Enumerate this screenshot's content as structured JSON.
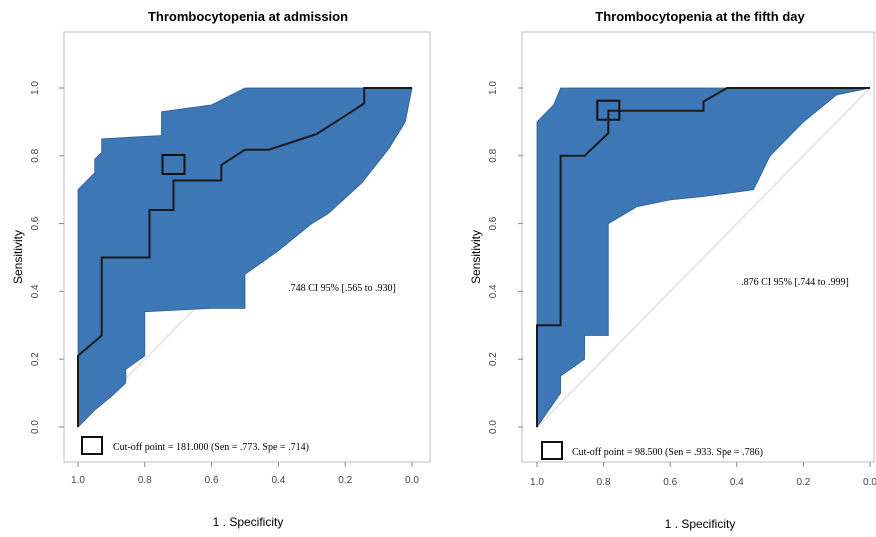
{
  "chart_data": [
    {
      "type": "line",
      "title": "Thrombocytopenia at admission",
      "xlabel": "1 . Specificity",
      "ylabel": "Sensitivity",
      "xlim": [
        1.0,
        0.0
      ],
      "ylim": [
        0.0,
        1.0
      ],
      "x_ticks": [
        "1.0",
        "0.8",
        "0.6",
        "0.4",
        "0.2",
        "0.0"
      ],
      "y_ticks": [
        "0.0",
        "0.2",
        "0.4",
        "0.6",
        "0.8",
        "1.0"
      ],
      "colors": {
        "ci_fill": "#3d77b6",
        "roc_line": "#1a1a1a",
        "diagonal": "#e8e8e8"
      },
      "annotation": ".748 CI 95% [.565 to .930]",
      "legend": "Cut-off point = 181.000 (Sen = .773. Spe = .714)",
      "cutoff_point": {
        "specificity": 0.714,
        "sensitivity": 0.773
      },
      "roc_curve": [
        [
          1.0,
          0.0
        ],
        [
          1.0,
          0.21
        ],
        [
          0.929,
          0.27
        ],
        [
          0.929,
          0.5
        ],
        [
          0.786,
          0.5
        ],
        [
          0.786,
          0.64
        ],
        [
          0.714,
          0.64
        ],
        [
          0.714,
          0.727
        ],
        [
          0.571,
          0.727
        ],
        [
          0.571,
          0.773
        ],
        [
          0.5,
          0.818
        ],
        [
          0.429,
          0.818
        ],
        [
          0.286,
          0.864
        ],
        [
          0.214,
          0.909
        ],
        [
          0.143,
          0.955
        ],
        [
          0.143,
          1.0
        ],
        [
          0.0,
          1.0
        ]
      ],
      "ci_upper": [
        [
          1.0,
          0.0
        ],
        [
          1.0,
          0.7
        ],
        [
          0.95,
          0.75
        ],
        [
          0.95,
          0.79
        ],
        [
          0.929,
          0.81
        ],
        [
          0.929,
          0.85
        ],
        [
          0.75,
          0.86
        ],
        [
          0.75,
          0.93
        ],
        [
          0.6,
          0.95
        ],
        [
          0.5,
          1.0
        ],
        [
          0.0,
          1.0
        ]
      ],
      "ci_lower": [
        [
          1.0,
          0.0
        ],
        [
          0.95,
          0.05
        ],
        [
          0.9,
          0.09
        ],
        [
          0.857,
          0.13
        ],
        [
          0.857,
          0.17
        ],
        [
          0.8,
          0.21
        ],
        [
          0.8,
          0.34
        ],
        [
          0.6,
          0.35
        ],
        [
          0.5,
          0.35
        ],
        [
          0.5,
          0.45
        ],
        [
          0.4,
          0.52
        ],
        [
          0.3,
          0.6
        ],
        [
          0.25,
          0.63
        ],
        [
          0.15,
          0.72
        ],
        [
          0.07,
          0.82
        ],
        [
          0.02,
          0.9
        ],
        [
          0.0,
          1.0
        ]
      ]
    },
    {
      "type": "line",
      "title": "Thrombocytopenia at the fifth day",
      "xlabel": "1 . Specificity",
      "ylabel": "Sensitivity",
      "xlim": [
        1.0,
        0.0
      ],
      "ylim": [
        0.0,
        1.0
      ],
      "x_ticks": [
        "1.0",
        "0.8",
        "0.6",
        "0.4",
        "0.2",
        "0.0"
      ],
      "y_ticks": [
        "0.0",
        "0.2",
        "0.4",
        "0.6",
        "0.8",
        "1.0"
      ],
      "colors": {
        "ci_fill": "#3d77b6",
        "roc_line": "#1a1a1a",
        "diagonal": "#e8e8e8"
      },
      "annotation": ".876 CI 95% [.744 to .999]",
      "legend": "Cut-off point = 98.500 (Sen = .933. Spe = .786)",
      "cutoff_point": {
        "specificity": 0.786,
        "sensitivity": 0.933
      },
      "roc_curve": [
        [
          1.0,
          0.0
        ],
        [
          1.0,
          0.3
        ],
        [
          0.929,
          0.3
        ],
        [
          0.929,
          0.8
        ],
        [
          0.857,
          0.8
        ],
        [
          0.786,
          0.867
        ],
        [
          0.786,
          0.933
        ],
        [
          0.5,
          0.933
        ],
        [
          0.5,
          0.96
        ],
        [
          0.429,
          1.0
        ],
        [
          0.0,
          1.0
        ]
      ],
      "ci_upper": [
        [
          1.0,
          0.0
        ],
        [
          1.0,
          0.9
        ],
        [
          0.95,
          0.95
        ],
        [
          0.929,
          1.0
        ],
        [
          0.0,
          1.0
        ]
      ],
      "ci_lower": [
        [
          1.0,
          0.0
        ],
        [
          0.95,
          0.07
        ],
        [
          0.929,
          0.1
        ],
        [
          0.929,
          0.15
        ],
        [
          0.857,
          0.2
        ],
        [
          0.857,
          0.27
        ],
        [
          0.786,
          0.27
        ],
        [
          0.786,
          0.6
        ],
        [
          0.7,
          0.65
        ],
        [
          0.6,
          0.67
        ],
        [
          0.5,
          0.68
        ],
        [
          0.35,
          0.7
        ],
        [
          0.3,
          0.8
        ],
        [
          0.2,
          0.9
        ],
        [
          0.1,
          0.98
        ],
        [
          0.0,
          1.0
        ]
      ]
    }
  ]
}
